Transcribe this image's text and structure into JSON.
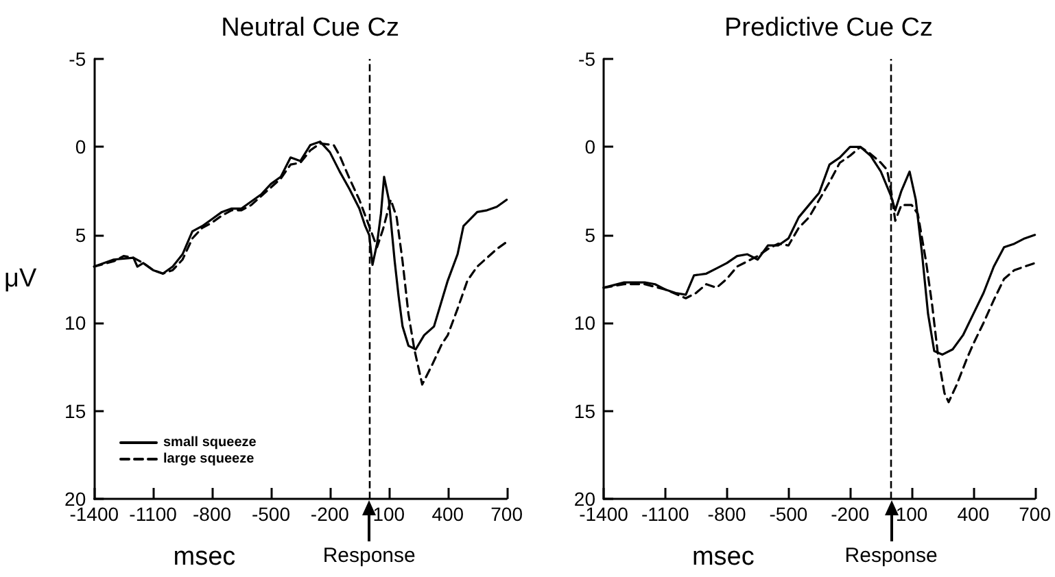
{
  "chart_data": [
    {
      "type": "line",
      "title": "Neutral Cue Cz",
      "xlabel": "msec",
      "ylabel": "μV",
      "xlim": [
        -1400,
        700
      ],
      "xticks": [
        -1400,
        -1100,
        -800,
        -500,
        -200,
        100,
        400,
        700
      ],
      "ylim": [
        20,
        -5
      ],
      "yticks": [
        -5,
        0,
        5,
        10,
        15,
        20
      ],
      "grid": false,
      "legend": "bottom left",
      "marker": "none",
      "ref_lines": [
        {
          "axis": "x",
          "value": 0,
          "label": "Response",
          "line_style": "dashed",
          "color": "#000000"
        }
      ],
      "series": [
        {
          "name": "small squeeze",
          "color": "#000000",
          "line_style": "solid",
          "x": [
            -1400,
            -1300,
            -1200,
            -1180,
            -1150,
            -1100,
            -1050,
            -1000,
            -950,
            -900,
            -850,
            -800,
            -750,
            -700,
            -650,
            -600,
            -550,
            -500,
            -450,
            -400,
            -350,
            -300,
            -250,
            -200,
            -150,
            -100,
            -50,
            -20,
            0,
            17,
            40,
            60,
            76,
            100,
            130,
            150,
            170,
            200,
            237,
            280,
            330,
            400,
            450,
            480,
            550,
            600,
            650,
            700
          ],
          "values": [
            6.8,
            6.4,
            6.3,
            6.8,
            6.6,
            7.0,
            7.2,
            6.8,
            6.1,
            4.8,
            4.5,
            4.1,
            3.7,
            3.5,
            3.5,
            3.1,
            2.7,
            2.1,
            1.7,
            0.6,
            0.8,
            -0.1,
            -0.3,
            0.3,
            1.4,
            2.4,
            3.5,
            4.5,
            5.0,
            6.7,
            5.5,
            3.8,
            1.7,
            3.0,
            6.5,
            8.5,
            10.2,
            11.3,
            11.5,
            10.7,
            10.2,
            7.6,
            6.1,
            4.5,
            3.7,
            3.6,
            3.4,
            3.0
          ]
        },
        {
          "name": "large squeeze",
          "color": "#000000",
          "line_style": "dashed",
          "x": [
            -1400,
            -1300,
            -1250,
            -1200,
            -1150,
            -1100,
            -1050,
            -1000,
            -950,
            -900,
            -850,
            -800,
            -750,
            -700,
            -650,
            -600,
            -550,
            -500,
            -450,
            -400,
            -350,
            -300,
            -250,
            -180,
            -150,
            -100,
            -50,
            -10,
            0,
            40,
            70,
            110,
            140,
            170,
            200,
            230,
            270,
            320,
            370,
            400,
            450,
            500,
            550,
            600,
            650,
            700
          ],
          "values": [
            6.8,
            6.5,
            6.2,
            6.3,
            6.6,
            7.0,
            7.2,
            7.0,
            6.4,
            5.2,
            4.6,
            4.3,
            3.9,
            3.6,
            3.6,
            3.3,
            2.8,
            2.3,
            1.8,
            1.0,
            0.9,
            0.2,
            -0.2,
            -0.1,
            0.5,
            1.8,
            3.0,
            4.2,
            4.5,
            5.7,
            4.7,
            3.0,
            4.0,
            6.5,
            9.5,
            11.5,
            13.5,
            12.4,
            11.2,
            10.7,
            9.2,
            7.6,
            6.8,
            6.3,
            5.8,
            5.4
          ]
        }
      ]
    },
    {
      "type": "line",
      "title": "Predictive Cue Cz",
      "xlabel": "msec",
      "xlim": [
        -1400,
        700
      ],
      "xticks": [
        -1400,
        -1100,
        -800,
        -500,
        -200,
        100,
        400,
        700
      ],
      "ylim": [
        20,
        -5
      ],
      "yticks": [
        -5,
        0,
        5,
        10,
        15,
        20
      ],
      "grid": false,
      "legend": false,
      "marker": "none",
      "ref_lines": [
        {
          "axis": "x",
          "value": 0,
          "label": "Response",
          "line_style": "dashed",
          "color": "#000000"
        }
      ],
      "series": [
        {
          "color": "#000000",
          "line_style": "solid",
          "x": [
            -1400,
            -1300,
            -1200,
            -1150,
            -1100,
            -1050,
            -1000,
            -960,
            -900,
            -850,
            -800,
            -750,
            -700,
            -650,
            -600,
            -550,
            -500,
            -450,
            -400,
            -350,
            -300,
            -250,
            -200,
            -150,
            -100,
            -50,
            0,
            20,
            50,
            90,
            120,
            150,
            180,
            210,
            250,
            300,
            350,
            400,
            450,
            500,
            550,
            600,
            650,
            700
          ],
          "values": [
            8.0,
            7.7,
            7.7,
            7.8,
            8.1,
            8.3,
            8.4,
            7.3,
            7.2,
            6.9,
            6.6,
            6.2,
            6.1,
            6.4,
            5.6,
            5.6,
            5.2,
            4.0,
            3.3,
            2.6,
            1.0,
            0.6,
            0.0,
            0.0,
            0.5,
            1.4,
            2.8,
            3.6,
            2.5,
            1.4,
            3.0,
            6.0,
            9.5,
            11.6,
            11.8,
            11.5,
            10.7,
            9.5,
            8.3,
            6.8,
            5.7,
            5.5,
            5.2,
            5.0
          ]
        },
        {
          "color": "#000000",
          "line_style": "dashed",
          "x": [
            -1400,
            -1300,
            -1200,
            -1100,
            -1000,
            -950,
            -900,
            -850,
            -800,
            -750,
            -700,
            -650,
            -600,
            -550,
            -500,
            -450,
            -400,
            -350,
            -300,
            -250,
            -200,
            -150,
            -100,
            -50,
            -20,
            0,
            20,
            50,
            100,
            130,
            170,
            200,
            230,
            260,
            280,
            320,
            370,
            400,
            450,
            500,
            550,
            600,
            650,
            700
          ],
          "values": [
            8.0,
            7.8,
            7.8,
            8.1,
            8.6,
            8.3,
            7.8,
            8.0,
            7.5,
            6.8,
            6.5,
            6.2,
            5.8,
            5.5,
            5.6,
            4.6,
            4.0,
            3.0,
            2.0,
            0.9,
            0.5,
            0.0,
            0.4,
            0.9,
            1.3,
            2.5,
            4.2,
            3.3,
            3.3,
            3.8,
            6.5,
            9.0,
            12.0,
            14.0,
            14.5,
            13.5,
            12.0,
            11.2,
            10.0,
            8.7,
            7.5,
            7.0,
            6.8,
            6.6
          ]
        }
      ]
    }
  ]
}
